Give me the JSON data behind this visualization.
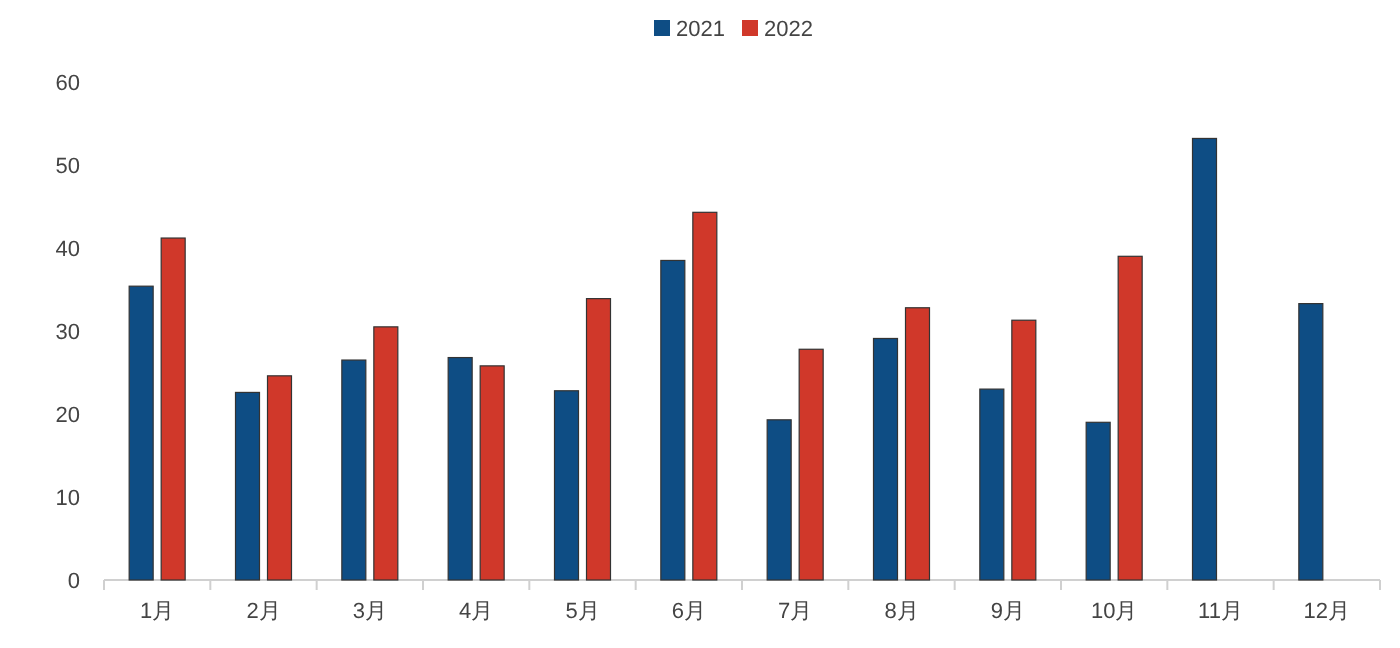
{
  "chart_data": {
    "type": "bar",
    "categories": [
      "1月",
      "2月",
      "3月",
      "4月",
      "5月",
      "6月",
      "7月",
      "8月",
      "9月",
      "10月",
      "11月",
      "12月"
    ],
    "series": [
      {
        "name": "2021",
        "color": "#0e4d84",
        "values": [
          35.4,
          22.6,
          26.5,
          26.8,
          22.8,
          38.5,
          19.3,
          29.1,
          23.0,
          19.0,
          53.2,
          33.3
        ]
      },
      {
        "name": "2022",
        "color": "#d0382a",
        "values": [
          41.2,
          24.6,
          30.5,
          25.8,
          33.9,
          44.3,
          27.8,
          32.8,
          31.3,
          39.0,
          null,
          null
        ]
      }
    ],
    "ylim": [
      0,
      60
    ],
    "yticks": [
      0,
      10,
      20,
      30,
      40,
      50,
      60
    ],
    "legend": "top",
    "grid": false
  }
}
